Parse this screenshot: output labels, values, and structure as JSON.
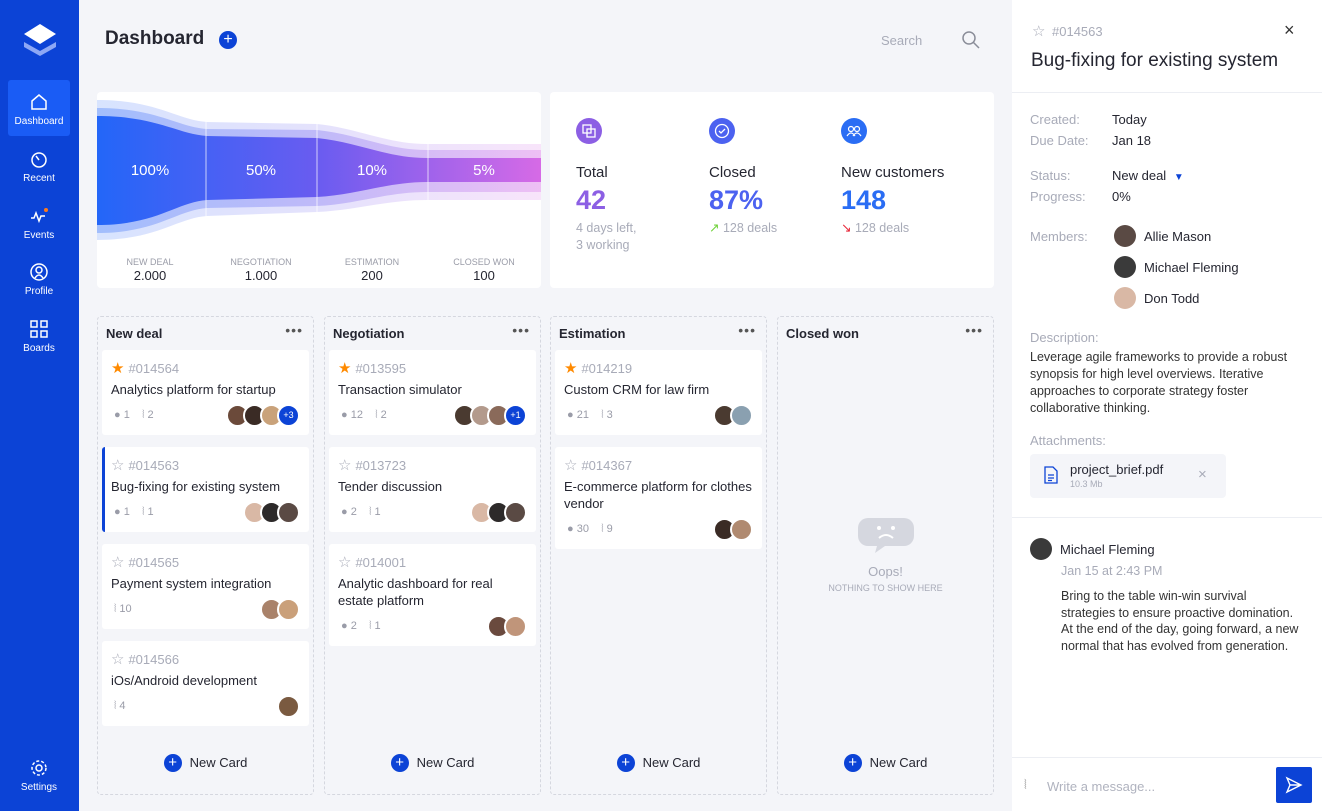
{
  "sidebar": {
    "items": [
      {
        "label": "Dashboard",
        "icon": "home-icon"
      },
      {
        "label": "Recent",
        "icon": "clock-icon"
      },
      {
        "label": "Events",
        "icon": "activity-icon"
      },
      {
        "label": "Profile",
        "icon": "user-icon"
      },
      {
        "label": "Boards",
        "icon": "grid-icon"
      }
    ],
    "settings": "Settings"
  },
  "header": {
    "title": "Dashboard",
    "search_placeholder": "Search"
  },
  "funnel": {
    "stages": [
      {
        "label": "New deal",
        "pct": "100%",
        "value": "2.000"
      },
      {
        "label": "Negotiation",
        "pct": "50%",
        "value": "1.000"
      },
      {
        "label": "Estimation",
        "pct": "10%",
        "value": "200"
      },
      {
        "label": "Closed won",
        "pct": "5%",
        "value": "100"
      }
    ]
  },
  "stats": [
    {
      "title": "Total",
      "value": "42",
      "sub1": "4 days left,",
      "sub2": "3 working",
      "color": "#8c5fe4"
    },
    {
      "title": "Closed",
      "value": "87%",
      "sub": "128 deals",
      "trend": "up",
      "color": "#4c62f0"
    },
    {
      "title": "New customers",
      "value": "148",
      "sub": "128 deals",
      "trend": "down",
      "color": "#2a6df4"
    }
  ],
  "columns": [
    {
      "title": "New deal",
      "new_card": "New Card",
      "cards": [
        {
          "id": "#014564",
          "name": "Analytics platform for startup",
          "starred": true,
          "comments": "1",
          "attachments": "2",
          "avatars": [
            "#6b4a3a",
            "#3a2b25",
            "#c9a27a"
          ],
          "more": "+3"
        },
        {
          "id": "#014563",
          "name": "Bug-fixing for existing system",
          "starred": false,
          "selected": true,
          "comments": "1",
          "attachments": "1",
          "avatars": [
            "#d9b8a5",
            "#2d2a2a",
            "#5a4a44"
          ]
        },
        {
          "id": "#014565",
          "name": "Payment system integration",
          "starred": false,
          "attachments": "10",
          "avatars": [
            "#a9826a",
            "#caa07a"
          ]
        },
        {
          "id": "#014566",
          "name": "iOs/Android development",
          "starred": false,
          "attachments": "4",
          "avatars": [
            "#7a5a40"
          ]
        }
      ]
    },
    {
      "title": "Negotiation",
      "new_card": "New Card",
      "cards": [
        {
          "id": "#013595",
          "name": "Transaction simulator",
          "starred": true,
          "comments": "12",
          "attachments": "2",
          "avatars": [
            "#4a3a30",
            "#b39a8c",
            "#8a6a5a"
          ],
          "more": "+1"
        },
        {
          "id": "#013723",
          "name": "Tender discussion",
          "starred": false,
          "comments": "2",
          "attachments": "1",
          "avatars": [
            "#d9b8a5",
            "#2d2a2a",
            "#5a4a44"
          ]
        },
        {
          "id": "#014001",
          "name": "Analytic dashboard for real estate platform",
          "starred": false,
          "comments": "2",
          "attachments": "1",
          "avatars": [
            "#6a4a3e",
            "#c0957a"
          ]
        }
      ]
    },
    {
      "title": "Estimation",
      "new_card": "New Card",
      "cards": [
        {
          "id": "#014219",
          "name": "Custom CRM for law firm",
          "starred": true,
          "comments": "21",
          "attachments": "3",
          "avatars": [
            "#4a3a30",
            "#8aa0b0"
          ]
        },
        {
          "id": "#014367",
          "name": "E-commerce platform for clothes vendor",
          "starred": false,
          "comments": "30",
          "attachments": "9",
          "avatars": [
            "#3a2b25",
            "#b08a70"
          ]
        }
      ]
    },
    {
      "title": "Closed won",
      "new_card": "New Card",
      "cards": [],
      "empty_title": "Oops!",
      "empty_sub": "NOTHING TO SHOW HERE"
    }
  ],
  "detail": {
    "id": "#014563",
    "title": "Bug-fixing for existing system",
    "created_label": "Created:",
    "created": "Today",
    "due_label": "Due Date:",
    "due": "Jan 18",
    "status_label": "Status:",
    "status": "New deal",
    "progress_label": "Progress:",
    "progress": "0%",
    "members_label": "Members:",
    "members": [
      {
        "name": "Allie Mason",
        "color": "#5a4a44"
      },
      {
        "name": "Michael Fleming",
        "color": "#3a3a3a"
      },
      {
        "name": "Don Todd",
        "color": "#d9b8a5"
      }
    ],
    "description_label": "Description:",
    "description": "Leverage agile frameworks to provide a robust synopsis for high level overviews. Iterative approaches to corporate strategy foster collaborative thinking.",
    "attachments_label": "Attachments:",
    "attachment": {
      "name": "project_brief.pdf",
      "size": "10.3 Mb"
    },
    "comment": {
      "author": "Michael Fleming",
      "time": "Jan 15 at 2:43 PM",
      "text": "Bring to the table win-win survival strategies to ensure proactive domination. At the end of the day, going forward, a new normal that has evolved from generation."
    },
    "message_placeholder": "Write a message..."
  },
  "colors": {
    "accent": "#0c43d6",
    "star": "#ff8a00",
    "up": "#6fd23a",
    "down": "#e8283a"
  }
}
